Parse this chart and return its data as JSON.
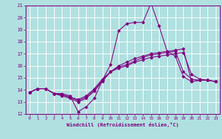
{
  "xlabel": "Windchill (Refroidissement éolien,°C)",
  "background_color": "#b0e0e0",
  "grid_color": "#ffffff",
  "line_color": "#800080",
  "xlim": [
    -0.5,
    23.5
  ],
  "ylim": [
    12,
    21
  ],
  "xticks": [
    0,
    1,
    2,
    3,
    4,
    5,
    6,
    7,
    8,
    9,
    10,
    11,
    12,
    13,
    14,
    15,
    16,
    17,
    18,
    19,
    20,
    21,
    22,
    23
  ],
  "yticks": [
    12,
    13,
    14,
    15,
    16,
    17,
    18,
    19,
    20,
    21
  ],
  "curves": [
    [
      13.8,
      14.1,
      14.1,
      13.7,
      13.7,
      13.5,
      12.2,
      12.6,
      13.3,
      14.8,
      16.1,
      18.9,
      19.5,
      19.6,
      19.6,
      21.2,
      19.3,
      17.2,
      16.8,
      15.1,
      14.7,
      14.8,
      14.8,
      14.7
    ],
    [
      13.8,
      14.1,
      14.1,
      13.7,
      13.5,
      13.3,
      13.0,
      13.3,
      13.9,
      14.7,
      15.5,
      16.0,
      16.3,
      16.6,
      16.8,
      17.0,
      17.1,
      17.2,
      17.3,
      17.4,
      14.7,
      14.8,
      14.8,
      14.7
    ],
    [
      13.8,
      14.1,
      14.1,
      13.7,
      13.6,
      13.4,
      13.1,
      13.4,
      14.0,
      14.8,
      15.5,
      15.9,
      16.1,
      16.4,
      16.7,
      16.9,
      17.0,
      17.1,
      17.2,
      15.5,
      14.9,
      14.8,
      14.8,
      14.7
    ],
    [
      13.8,
      14.1,
      14.1,
      13.7,
      13.6,
      13.4,
      13.2,
      13.5,
      14.1,
      14.9,
      15.5,
      15.8,
      16.0,
      16.3,
      16.5,
      16.7,
      16.8,
      16.9,
      17.0,
      17.1,
      15.3,
      14.9,
      14.8,
      14.7
    ]
  ]
}
